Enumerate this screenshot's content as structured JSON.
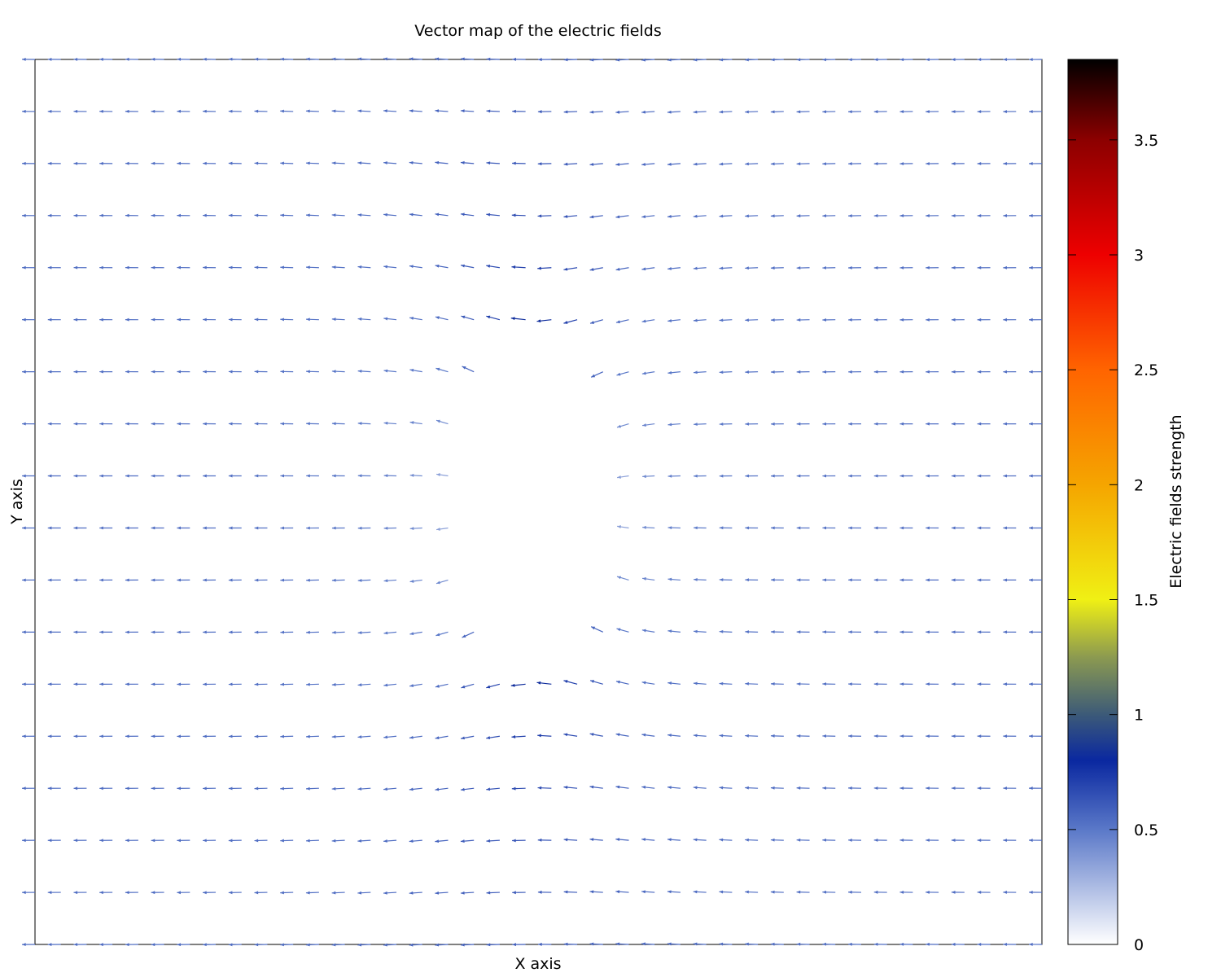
{
  "chart_data": {
    "type": "vector_field",
    "title": "Vector map of the electric fields",
    "xlabel": "X axis",
    "ylabel": "Y axis",
    "colorbar": {
      "label": "Electric fields strength",
      "range": [
        0,
        3.85
      ],
      "ticks": [
        {
          "value": 0,
          "label": "0"
        },
        {
          "value": 0.5,
          "label": "0.5"
        },
        {
          "value": 1,
          "label": "1"
        },
        {
          "value": 1.5,
          "label": "1.5"
        },
        {
          "value": 2,
          "label": "2"
        },
        {
          "value": 2.5,
          "label": "2.5"
        },
        {
          "value": 3,
          "label": "3"
        },
        {
          "value": 3.5,
          "label": "3.5"
        }
      ],
      "palette": [
        {
          "value": 0,
          "color": "#ffffff"
        },
        {
          "value": 0.5,
          "color": "#5a78c8"
        },
        {
          "value": 0.8,
          "color": "#0a28a0"
        },
        {
          "value": 1.0,
          "color": "#3c5a78"
        },
        {
          "value": 1.25,
          "color": "#8c9a50"
        },
        {
          "value": 1.5,
          "color": "#f0f014"
        },
        {
          "value": 2.0,
          "color": "#f5a500"
        },
        {
          "value": 2.5,
          "color": "#ff6400"
        },
        {
          "value": 3.0,
          "color": "#ee0000"
        },
        {
          "value": 3.5,
          "color": "#8c0000"
        },
        {
          "value": 3.85,
          "color": "#000000"
        }
      ]
    },
    "field_model": {
      "description_of_physics": "uniform field pointing in -x distorted around a conducting ellipse",
      "uniform_field": 0.5,
      "grid_columns": 40,
      "grid_rows": 18,
      "ellipse_center": [
        0.5,
        0.5
      ],
      "ellipse_semi_axes": [
        0.075,
        0.2
      ],
      "colors": {
        "axis": "#000000",
        "background": "#ffffff"
      }
    }
  }
}
